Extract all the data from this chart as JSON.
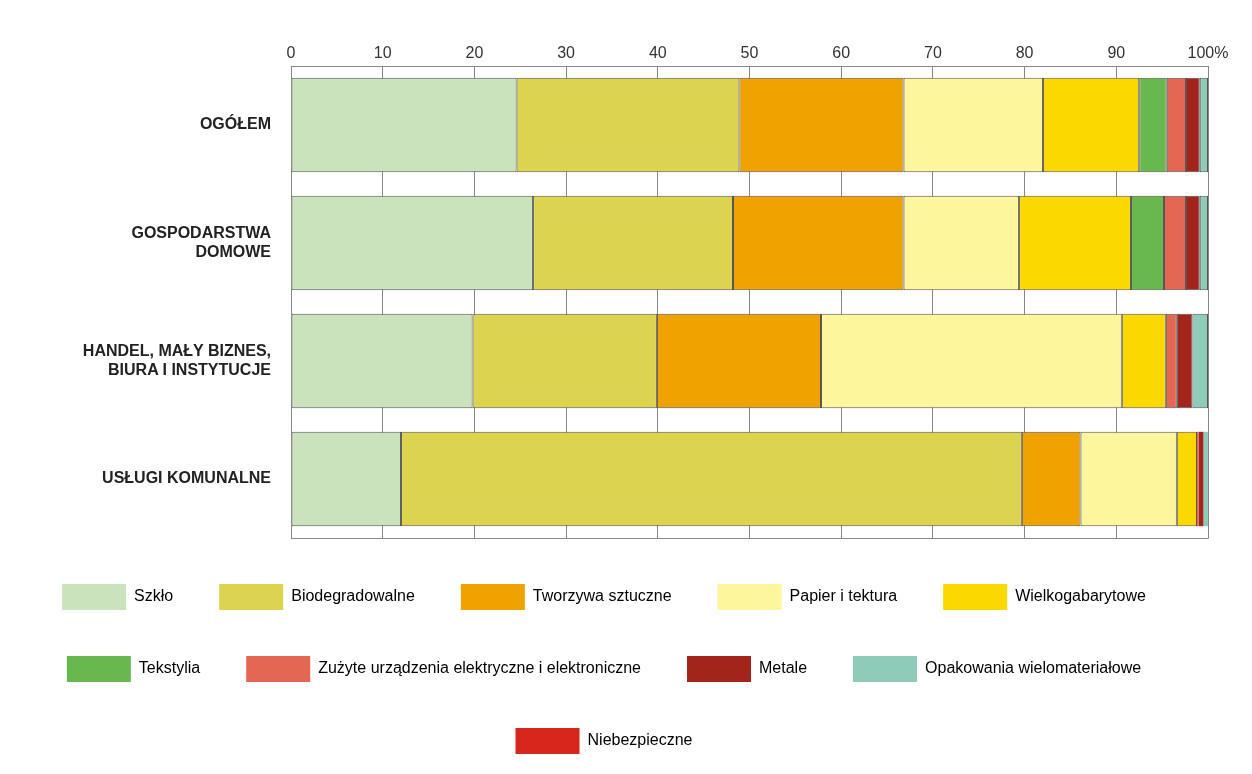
{
  "chart_data": {
    "type": "bar",
    "orientation": "horizontal",
    "stacked": true,
    "categories": [
      "OGÓŁEM",
      "GOSPODARSTWA\nDOMOWE",
      "HANDEL, MAŁY BIZNES,\nBIURA I INSTYTUCJE",
      "USŁUGI KOMUNALNE"
    ],
    "series": [
      {
        "name": "Szkło",
        "color": "#cbe3bd",
        "values": [
          24.6,
          26.4,
          19.8,
          12.0
        ]
      },
      {
        "name": "Biodegradowalne",
        "color": "#dcd44f",
        "values": [
          24.3,
          21.8,
          20.1,
          67.7
        ]
      },
      {
        "name": "Tworzywa sztuczne",
        "color": "#f0a300",
        "values": [
          17.9,
          18.6,
          17.9,
          6.4
        ]
      },
      {
        "name": "Papier i tektura",
        "color": "#fdf69c",
        "values": [
          15.2,
          12.6,
          32.8,
          10.5
        ]
      },
      {
        "name": "Wielkogabarytowe",
        "color": "#fbd800",
        "values": [
          10.5,
          12.2,
          4.8,
          2.2
        ]
      },
      {
        "name": "Tekstylia",
        "color": "#69b84f",
        "values": [
          3.0,
          3.6,
          0,
          0
        ]
      },
      {
        "name": "Zużyte urządzenia elektryczne i elektroniczne",
        "color": "#e36752",
        "values": [
          2.1,
          2.4,
          1.2,
          0.2
        ]
      },
      {
        "name": "Metale",
        "color": "#a3241b",
        "values": [
          1.5,
          1.5,
          1.7,
          0.5
        ]
      },
      {
        "name": "Opakowania wielomateriałowe",
        "color": "#8ecbb8",
        "values": [
          0.9,
          0.9,
          1.7,
          0.5
        ]
      },
      {
        "name": "Niebezpieczne",
        "color": "#d9261c",
        "values": [
          0,
          0,
          0,
          0
        ]
      }
    ],
    "xlim": [
      0,
      100
    ],
    "xticks": [
      0,
      10,
      20,
      30,
      40,
      50,
      60,
      70,
      80,
      90,
      {
        "value": 100,
        "label": "100%"
      }
    ],
    "grid": "x",
    "legend": "bottom"
  }
}
